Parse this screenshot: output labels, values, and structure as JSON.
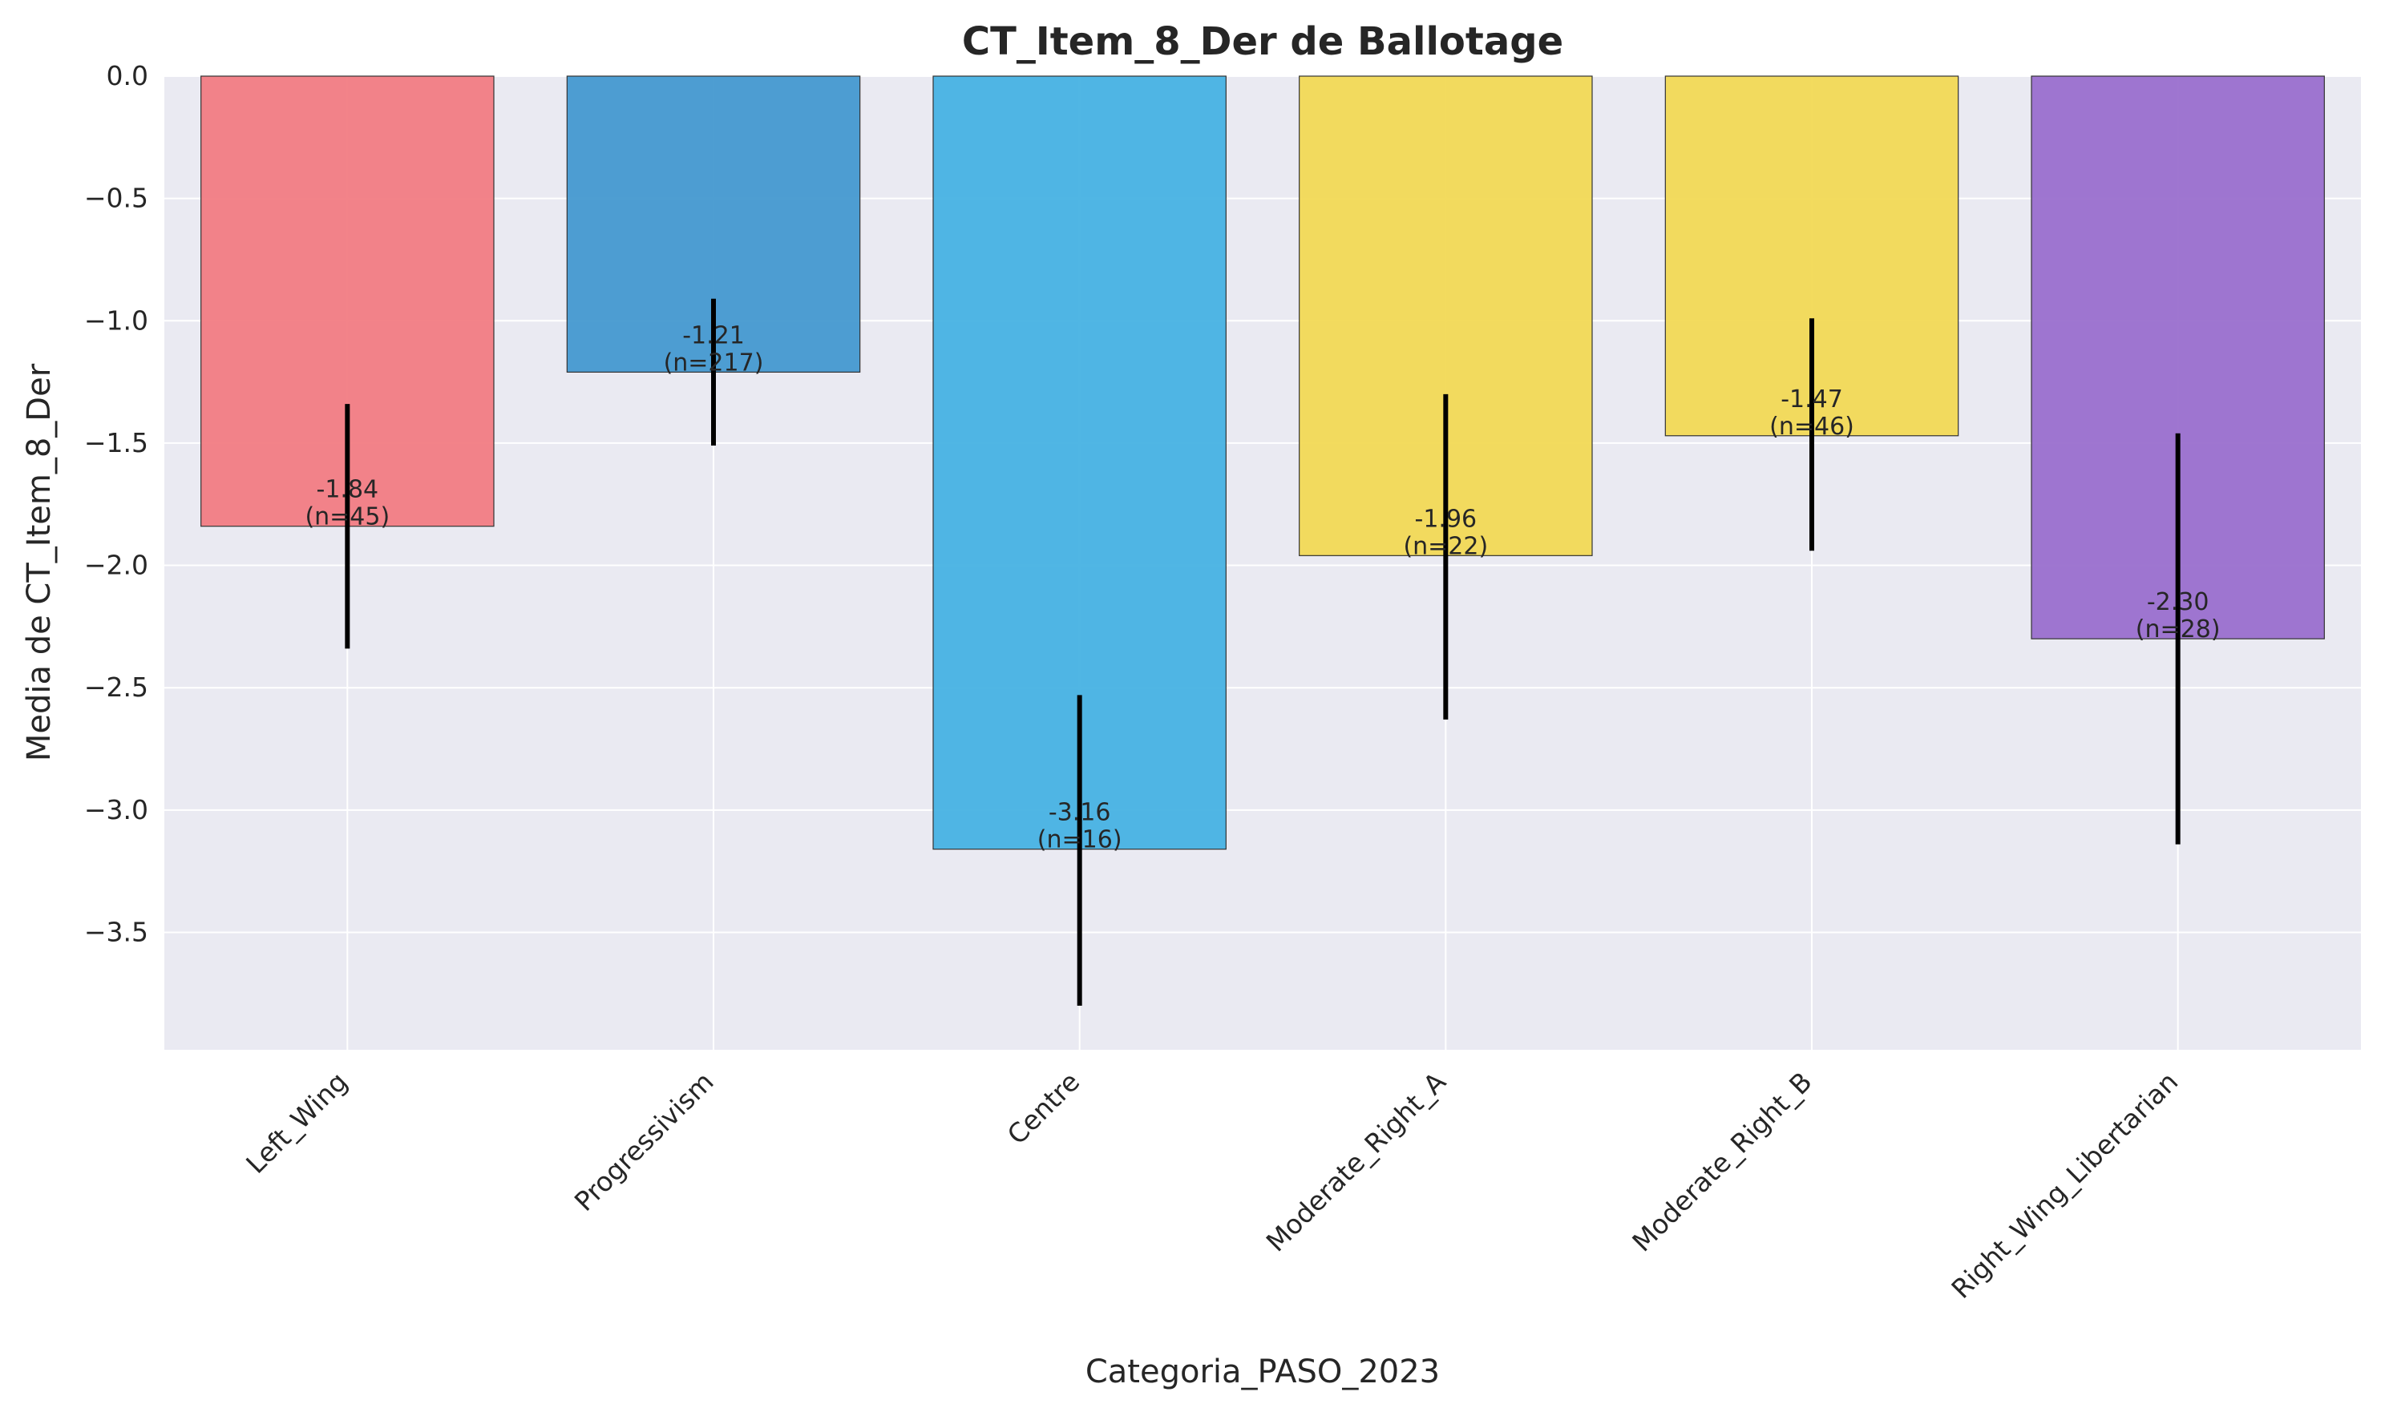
{
  "chart_data": {
    "type": "bar",
    "title": "CT_Item_8_Der de Ballotage",
    "xlabel": "Categoria_PASO_2023",
    "ylabel": "Media de CT_Item_8_Der",
    "categories": [
      "Left_Wing",
      "Progressivism",
      "Centre",
      "Moderate_Right_A",
      "Moderate_Right_B",
      "Right_Wing_Libertarian"
    ],
    "values": [
      -1.84,
      -1.21,
      -3.16,
      -1.96,
      -1.47,
      -2.3
    ],
    "error_low": [
      -2.34,
      -1.51,
      -3.8,
      -2.63,
      -1.94,
      -3.14
    ],
    "error_high": [
      -1.34,
      -0.91,
      -2.53,
      -1.3,
      -0.99,
      -1.46
    ],
    "n": [
      45,
      217,
      16,
      22,
      46,
      28
    ],
    "value_labels": [
      "-1.84",
      "-1.21",
      "-3.16",
      "-1.96",
      "-1.47",
      "-2.30"
    ],
    "n_labels": [
      "(n=45)",
      "(n=217)",
      "(n=16)",
      "(n=22)",
      "(n=46)",
      "(n=28)"
    ],
    "colors": [
      "#f27c83",
      "#4499d0",
      "#47b2e3",
      "#f2d955",
      "#f2d955",
      "#9a6fce"
    ],
    "ylim": [
      -3.98,
      0
    ],
    "yticks": [
      0.0,
      -0.5,
      -1.0,
      -1.5,
      -2.0,
      -2.5,
      -3.0,
      -3.5
    ],
    "ytick_labels": [
      "0.0",
      "−0.5",
      "−1.0",
      "−1.5",
      "−2.0",
      "−2.5",
      "−3.0",
      "−3.5"
    ],
    "grid": true,
    "background": "#eaeaf2"
  }
}
